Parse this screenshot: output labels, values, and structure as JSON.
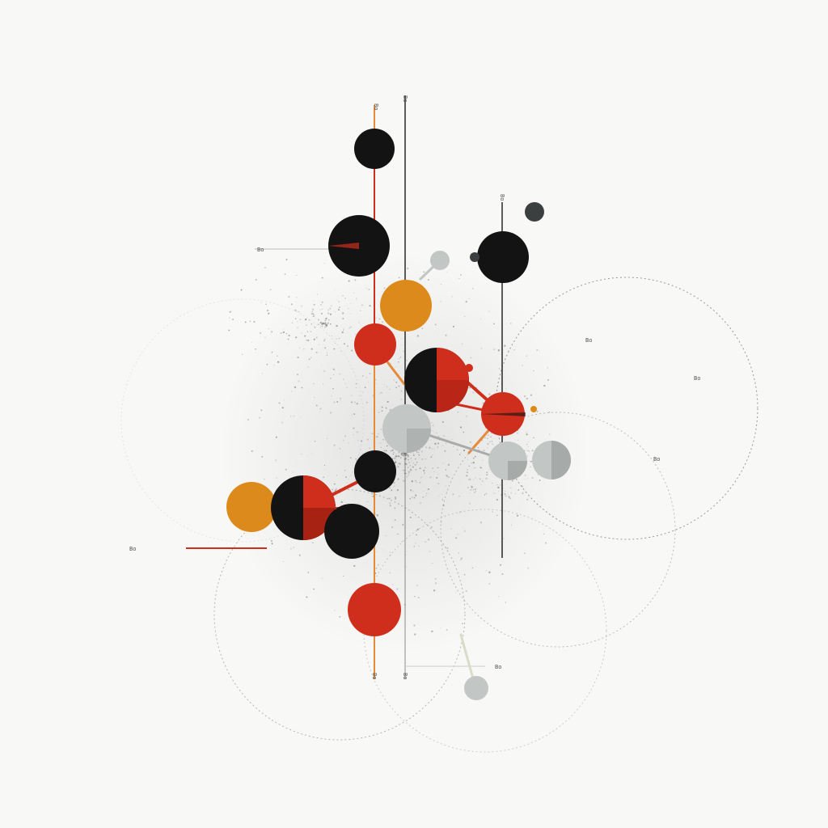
{
  "artwork": {
    "colors": {
      "background": "#f8f8f7",
      "black": "#131313",
      "red": "#cf2e1c",
      "orange": "#dc8a1b",
      "grey": "#c2c6c4",
      "dark_grey": "#3c3f40",
      "line_orange": "#e68a3a",
      "line_red": "#cf2e1c",
      "line_black": "#1a1a1a",
      "speckle": "#8a8a8a"
    },
    "labels": [
      {
        "id": "top-left-label",
        "text": "Bo"
      },
      {
        "id": "top-right-label",
        "text": "Bo"
      },
      {
        "id": "upper-axis-label",
        "text": "Bo"
      },
      {
        "id": "left-axis-label",
        "text": "Bo"
      },
      {
        "id": "mid-right-label",
        "text": "Bo"
      },
      {
        "id": "far-right-label",
        "text": "Bo"
      },
      {
        "id": "lower-right-label",
        "text": "Bo"
      },
      {
        "id": "left-label",
        "text": "Bo"
      },
      {
        "id": "bottom-left-label",
        "text": "Bo"
      },
      {
        "id": "bottom-right-label",
        "text": "Bo"
      },
      {
        "id": "bottom-small-label",
        "text": "Bo"
      }
    ]
  }
}
